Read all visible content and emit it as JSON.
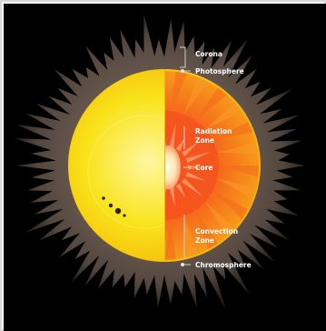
{
  "diagram": {
    "colors": {
      "background": "#000000",
      "corona": "#5e5047",
      "photosphere": "#f6ee1e",
      "convection_zone": "#f57c16",
      "radiation_zone": "#f5541e",
      "core": "#fff0c8",
      "label": "#ffffff",
      "leader": "#cfcfcf"
    },
    "labels": {
      "corona": "Corona",
      "photosphere": "Photosphere",
      "radiation_zone": "Radiation Zone",
      "core": "Core",
      "convection_zone": "Convection Zone",
      "chromosphere": "Chromosphere"
    }
  }
}
